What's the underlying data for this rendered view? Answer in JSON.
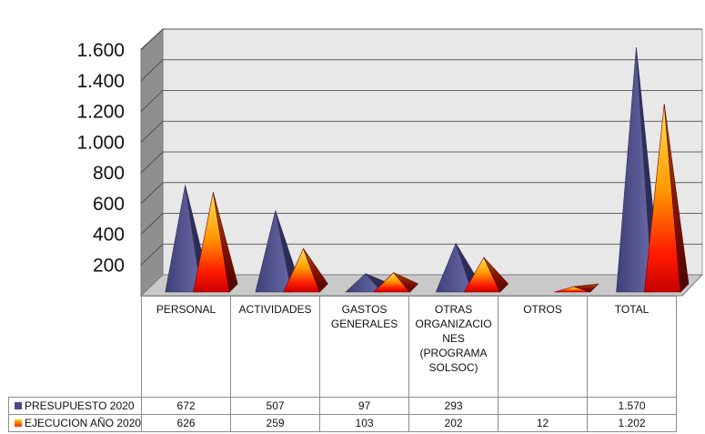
{
  "chart_data": {
    "type": "bar",
    "subtype": "3d-pyramid",
    "categories": [
      "PERSONAL",
      "ACTIVIDADES",
      "GASTOS GENERALES",
      "OTRAS ORGANIZACIONES (PROGRAMA SOLSOC)",
      "OTROS",
      "TOTAL"
    ],
    "category_lines": [
      [
        "PERSONAL"
      ],
      [
        "ACTIVIDADES"
      ],
      [
        "GASTOS",
        "GENERALES"
      ],
      [
        "OTRAS",
        "ORGANIZACIO",
        "NES",
        "(PROGRAMA",
        "SOLSOC)"
      ],
      [
        "OTROS"
      ],
      [
        "TOTAL"
      ]
    ],
    "series": [
      {
        "name": "PRESUPUESTO 2020",
        "values": [
          672,
          507,
          97,
          293,
          null,
          1570
        ],
        "labels": [
          "672",
          "507",
          "97",
          "293",
          "",
          "1.570"
        ],
        "color": "#4b4b86"
      },
      {
        "name": "EJECUCION AÑO 2020",
        "values": [
          626,
          259,
          103,
          202,
          12,
          1202
        ],
        "labels": [
          "626",
          "259",
          "103",
          "202",
          "12",
          "1.202"
        ],
        "color": "#ff6a00"
      }
    ],
    "y_ticks": [
      "200",
      "400",
      "600",
      "800",
      "1.000",
      "1.200",
      "1.400",
      "1.600"
    ],
    "y_tick_values": [
      200,
      400,
      600,
      800,
      1000,
      1200,
      1400,
      1600
    ],
    "ylim": [
      0,
      1600
    ],
    "grid": true,
    "legend": "data-table-left",
    "title": "",
    "xlabel": "",
    "ylabel": "",
    "wall_color": "#e6e6e6"
  }
}
